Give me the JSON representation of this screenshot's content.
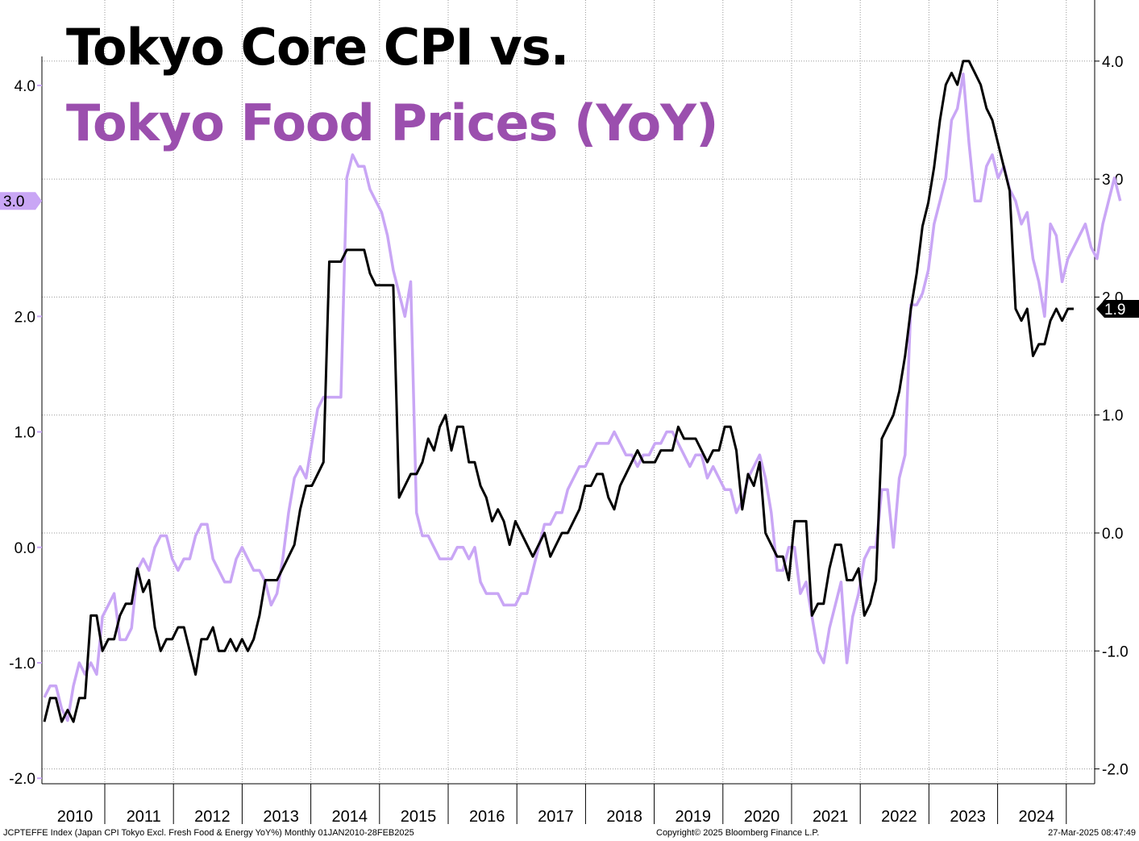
{
  "title_line1": "Tokyo Core CPI vs.",
  "title_line2": "Tokyo Food Prices (YoY)",
  "footer": {
    "left": "JCPTEFFE Index (Japan CPI Tokyo Excl. Fresh Food & Energy YoY%)  Monthly 01JAN2010-28FEB2025",
    "center": "Copyright© 2025 Bloomberg Finance L.P.",
    "right": "27-Mar-2025 08:47:49"
  },
  "colors": {
    "core": "#000000",
    "food": "#c9a6f5",
    "food_title": "#9b4fae",
    "grid": "#9a9a9a"
  },
  "chart_data": {
    "type": "line",
    "x_labels": [
      "2010",
      "2011",
      "2012",
      "2013",
      "2014",
      "2015",
      "2016",
      "2017",
      "2018",
      "2019",
      "2020",
      "2021",
      "2022",
      "2023",
      "2024"
    ],
    "left_axis": {
      "ticks": [
        "4.0",
        "3.0",
        "2.0",
        "1.0",
        "0.0",
        "-1.0",
        "-2.0"
      ],
      "ylim": [
        -2.1,
        4.1
      ]
    },
    "right_axis": {
      "ticks": [
        "4.0",
        "3.0",
        "2.0",
        "1.0",
        "0.0",
        "-1.0",
        "-2.0"
      ],
      "ylim": [
        -2.1,
        4.5
      ]
    },
    "grid": true,
    "series": [
      {
        "name": "Core",
        "axis": "right",
        "last_value_label": "1.9",
        "values": [
          -1.6,
          -1.4,
          -1.4,
          -1.6,
          -1.5,
          -1.6,
          -1.4,
          -1.4,
          -0.7,
          -0.7,
          -1.0,
          -0.9,
          -0.9,
          -0.7,
          -0.6,
          -0.6,
          -0.3,
          -0.5,
          -0.4,
          -0.8,
          -1.0,
          -0.9,
          -0.9,
          -0.8,
          -0.8,
          -1.0,
          -1.2,
          -0.9,
          -0.9,
          -0.8,
          -1.0,
          -1.0,
          -0.9,
          -1.0,
          -0.9,
          -1.0,
          -0.9,
          -0.7,
          -0.4,
          -0.4,
          -0.4,
          -0.3,
          -0.2,
          -0.1,
          0.2,
          0.4,
          0.4,
          0.5,
          0.6,
          2.3,
          2.3,
          2.3,
          2.4,
          2.4,
          2.4,
          2.4,
          2.2,
          2.1,
          2.1,
          2.1,
          2.1,
          0.3,
          0.4,
          0.5,
          0.5,
          0.6,
          0.8,
          0.7,
          0.9,
          1.0,
          0.7,
          0.9,
          0.9,
          0.6,
          0.6,
          0.4,
          0.3,
          0.1,
          0.2,
          0.1,
          -0.1,
          0.1,
          0.0,
          -0.1,
          -0.2,
          -0.1,
          0.0,
          -0.2,
          -0.1,
          0.0,
          0.0,
          0.1,
          0.2,
          0.4,
          0.4,
          0.5,
          0.5,
          0.3,
          0.2,
          0.4,
          0.5,
          0.6,
          0.7,
          0.6,
          0.6,
          0.6,
          0.7,
          0.7,
          0.7,
          0.9,
          0.8,
          0.8,
          0.8,
          0.7,
          0.6,
          0.7,
          0.7,
          0.9,
          0.9,
          0.7,
          0.2,
          0.5,
          0.4,
          0.6,
          0.0,
          -0.1,
          -0.2,
          -0.2,
          -0.4,
          0.1,
          0.1,
          0.1,
          -0.7,
          -0.6,
          -0.6,
          -0.3,
          -0.1,
          -0.1,
          -0.4,
          -0.4,
          -0.3,
          -0.7,
          -0.6,
          -0.4,
          0.8,
          0.9,
          1.0,
          1.2,
          1.5,
          1.9,
          2.2,
          2.6,
          2.8,
          3.1,
          3.5,
          3.8,
          3.9,
          3.8,
          4.0,
          4.0,
          3.9,
          3.8,
          3.6,
          3.5,
          3.3,
          3.1,
          2.9,
          1.9,
          1.8,
          1.9,
          1.5,
          1.6,
          1.6,
          1.8,
          1.9,
          1.8,
          1.9,
          1.9
        ]
      },
      {
        "name": "Food",
        "axis": "left",
        "last_value_label": "3.0",
        "values": [
          -1.3,
          -1.2,
          -1.2,
          -1.4,
          -1.5,
          -1.2,
          -1.0,
          -1.1,
          -1.0,
          -1.1,
          -0.6,
          -0.5,
          -0.4,
          -0.8,
          -0.8,
          -0.7,
          -0.2,
          -0.1,
          -0.2,
          0.0,
          0.1,
          0.1,
          -0.1,
          -0.2,
          -0.1,
          -0.1,
          0.1,
          0.2,
          0.2,
          -0.1,
          -0.2,
          -0.3,
          -0.3,
          -0.1,
          0.0,
          -0.1,
          -0.2,
          -0.2,
          -0.3,
          -0.5,
          -0.4,
          -0.1,
          0.3,
          0.6,
          0.7,
          0.6,
          0.9,
          1.2,
          1.3,
          1.3,
          1.3,
          1.3,
          3.2,
          3.4,
          3.3,
          3.3,
          3.1,
          3.0,
          2.9,
          2.7,
          2.4,
          2.2,
          2.0,
          2.3,
          0.3,
          0.1,
          0.1,
          0.0,
          -0.1,
          -0.1,
          -0.1,
          0.0,
          0.0,
          -0.1,
          0.0,
          -0.3,
          -0.4,
          -0.4,
          -0.4,
          -0.5,
          -0.5,
          -0.5,
          -0.4,
          -0.4,
          -0.2,
          0.0,
          0.2,
          0.2,
          0.3,
          0.3,
          0.5,
          0.6,
          0.7,
          0.7,
          0.8,
          0.9,
          0.9,
          0.9,
          1.0,
          0.9,
          0.8,
          0.8,
          0.7,
          0.8,
          0.8,
          0.9,
          0.9,
          1.0,
          1.0,
          0.9,
          0.8,
          0.7,
          0.8,
          0.8,
          0.6,
          0.7,
          0.6,
          0.5,
          0.5,
          0.3,
          0.4,
          0.6,
          0.7,
          0.8,
          0.6,
          0.3,
          -0.2,
          -0.2,
          0.0,
          0.0,
          -0.4,
          -0.3,
          -0.6,
          -0.9,
          -1.0,
          -0.7,
          -0.5,
          -0.3,
          -1.0,
          -0.6,
          -0.4,
          -0.1,
          0.0,
          0.0,
          0.5,
          0.5,
          0.0,
          0.6,
          0.8,
          2.1,
          2.1,
          2.2,
          2.4,
          2.8,
          3.0,
          3.2,
          3.7,
          3.8,
          4.1,
          3.5,
          3.0,
          3.0,
          3.3,
          3.4,
          3.2,
          3.3,
          3.1,
          3.0,
          2.8,
          2.9,
          2.5,
          2.3,
          2.0,
          2.8,
          2.7,
          2.3,
          2.5,
          2.6,
          2.7,
          2.8,
          2.6,
          2.5,
          2.8,
          3.0,
          3.2,
          3.0
        ]
      }
    ]
  }
}
